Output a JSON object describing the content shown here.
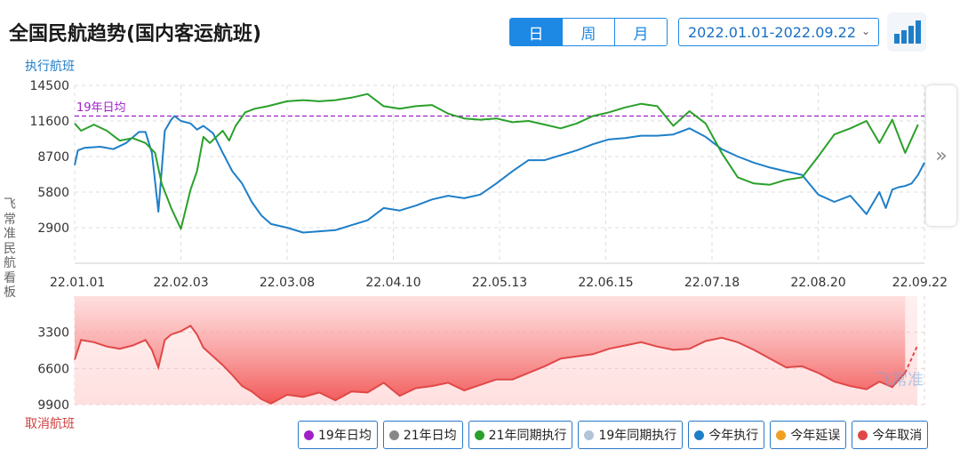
{
  "header": {
    "title": "全国民航趋势(国内客运航班)",
    "period_options": [
      "日",
      "周",
      "月"
    ],
    "active_period": "日",
    "date_range": "2022.01.01-2022.09.22",
    "chart_toggle_icon": "bar-chart-icon"
  },
  "watermark": "飞常准",
  "side_label": "飞常准民航看板",
  "colors": {
    "accent": "#1e88e5",
    "series_2019_avg": "#a020c8",
    "series_2021_avg": "#888888",
    "series_2021": "#2aa02a",
    "series_2019": "#b0c4d8",
    "series_2022_exec": "#1e7fc8",
    "series_2022_delay": "#f0a020",
    "series_2022_cancel": "#e04848"
  },
  "legend": [
    {
      "label": "19年日均",
      "color": "#a020c8"
    },
    {
      "label": "21年日均",
      "color": "#888888"
    },
    {
      "label": "21年同期执行",
      "color": "#2aa02a"
    },
    {
      "label": "19年同期执行",
      "color": "#b0c4d8"
    },
    {
      "label": "今年执行",
      "color": "#1e7fc8"
    },
    {
      "label": "今年延误",
      "color": "#f0a020"
    },
    {
      "label": "今年取消",
      "color": "#e04848"
    }
  ],
  "chart_data": [
    {
      "type": "line",
      "ylabel": "执行航班",
      "yticks": [
        2900,
        5800,
        8700,
        11600,
        14500
      ],
      "ylim": [
        0,
        14500
      ],
      "x_tick_labels": [
        "22.01.01",
        "22.02.03",
        "22.03.08",
        "22.04.10",
        "22.05.13",
        "22.06.15",
        "22.07.18",
        "22.08.20",
        "22.09.22"
      ],
      "reference_line": {
        "name": "19年日均",
        "value": 12000
      },
      "x_days_range": [
        0,
        264
      ],
      "series": [
        {
          "name": "今年执行",
          "x": [
            0,
            1,
            3,
            8,
            12,
            16,
            20,
            22,
            24,
            26,
            28,
            30,
            31,
            33,
            36,
            38,
            40,
            43,
            46,
            49,
            52,
            55,
            58,
            61,
            66,
            71,
            76,
            81,
            86,
            91,
            96,
            101,
            106,
            111,
            116,
            121,
            126,
            131,
            136,
            141,
            146,
            151,
            156,
            161,
            166,
            171,
            176,
            181,
            186,
            191,
            196,
            201,
            206,
            211,
            216,
            221,
            226,
            231,
            236,
            241,
            246,
            250,
            252,
            254,
            256,
            258,
            260,
            262,
            264
          ],
          "y": [
            8000,
            9200,
            9400,
            9500,
            9300,
            9800,
            10700,
            10700,
            9000,
            4200,
            10800,
            11700,
            12000,
            11600,
            11400,
            10900,
            11200,
            10600,
            9000,
            7500,
            6500,
            5000,
            3900,
            3200,
            2900,
            2500,
            2600,
            2700,
            3100,
            3500,
            4500,
            4300,
            4700,
            5200,
            5500,
            5300,
            5600,
            6500,
            7500,
            8400,
            8400,
            8800,
            9200,
            9700,
            10100,
            10200,
            10400,
            10400,
            10500,
            11000,
            10300,
            9300,
            8700,
            8200,
            7800,
            7500,
            7200,
            5600,
            5000,
            5500,
            4000,
            5800,
            4500,
            6000,
            6200,
            6300,
            6500,
            7200,
            8200
          ]
        },
        {
          "name": "21年同期执行",
          "x": [
            0,
            2,
            6,
            10,
            14,
            18,
            22,
            25,
            27,
            30,
            33,
            36,
            38,
            40,
            42,
            46,
            48,
            50,
            53,
            56,
            60,
            66,
            71,
            76,
            81,
            86,
            91,
            96,
            101,
            106,
            111,
            116,
            121,
            126,
            131,
            136,
            141,
            146,
            151,
            156,
            161,
            166,
            171,
            176,
            181,
            186,
            191,
            196,
            201,
            206,
            211,
            216,
            221,
            226,
            231,
            236,
            241,
            246,
            250,
            254,
            258,
            262
          ],
          "y": [
            11400,
            10800,
            11300,
            10800,
            10000,
            10200,
            9800,
            9000,
            6500,
            4500,
            2800,
            6000,
            7500,
            10300,
            9800,
            10800,
            10000,
            11200,
            12300,
            12600,
            12800,
            13200,
            13300,
            13200,
            13300,
            13500,
            13800,
            12800,
            12600,
            12800,
            12900,
            12200,
            11800,
            11700,
            11800,
            11500,
            11600,
            11300,
            11000,
            11400,
            12000,
            12300,
            12700,
            13000,
            12800,
            11200,
            12400,
            11400,
            9000,
            7000,
            6500,
            6400,
            6800,
            7000,
            8700,
            10500,
            11000,
            11600,
            9800,
            11700,
            9000,
            11300
          ]
        }
      ]
    },
    {
      "type": "area",
      "ylabel": "取消航班",
      "yticks": [
        3300,
        6600,
        9900
      ],
      "ylim": [
        9900,
        0
      ],
      "inverted": true,
      "series": [
        {
          "name": "今年取消",
          "x": [
            0,
            2,
            6,
            10,
            14,
            18,
            22,
            24,
            26,
            28,
            30,
            33,
            36,
            38,
            40,
            43,
            46,
            49,
            52,
            55,
            58,
            61,
            66,
            71,
            76,
            81,
            86,
            91,
            96,
            101,
            106,
            111,
            116,
            121,
            126,
            131,
            136,
            141,
            146,
            151,
            156,
            161,
            166,
            171,
            176,
            181,
            186,
            191,
            196,
            201,
            206,
            211,
            216,
            221,
            226,
            231,
            236,
            241,
            246,
            250,
            254,
            258,
            262
          ],
          "y": [
            5800,
            4000,
            4200,
            4600,
            4800,
            4500,
            4000,
            4900,
            6500,
            4000,
            3500,
            3200,
            2700,
            3500,
            4700,
            5500,
            6300,
            7200,
            8200,
            8700,
            9400,
            9800,
            9000,
            9200,
            8800,
            9500,
            8700,
            8800,
            7900,
            9100,
            8400,
            8200,
            7900,
            8600,
            8100,
            7600,
            7600,
            7000,
            6400,
            5700,
            5500,
            5300,
            4800,
            4500,
            4200,
            4600,
            4900,
            4800,
            4100,
            3800,
            4200,
            4900,
            5700,
            6500,
            6400,
            7000,
            7800,
            8200,
            8500,
            7800,
            8300,
            7000,
            4400
          ]
        }
      ]
    }
  ]
}
